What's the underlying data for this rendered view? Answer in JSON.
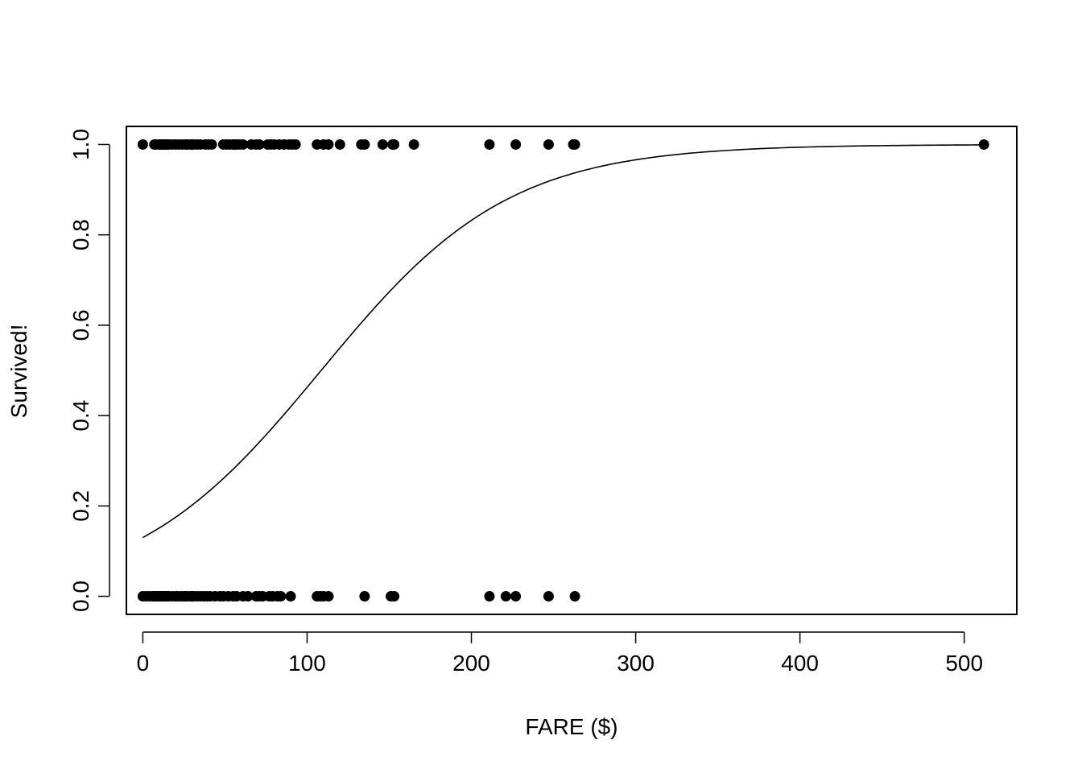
{
  "chart_data": {
    "type": "scatter",
    "title": "",
    "xlabel": "FARE ($)",
    "ylabel": "Survived!",
    "xlim": [
      -10,
      532
    ],
    "ylim": [
      -0.04,
      1.04
    ],
    "xticks": [
      0,
      100,
      200,
      300,
      400,
      500
    ],
    "yticks": [
      0.0,
      0.2,
      0.4,
      0.6,
      0.8,
      1.0
    ],
    "ytick_labels": [
      "0.0",
      "0.2",
      "0.4",
      "0.6",
      "0.8",
      "1.0"
    ],
    "grid": false,
    "legend": "none",
    "point_color": "#000000",
    "series": [
      {
        "values_x": [
          0,
          7,
          8,
          10,
          11,
          12,
          13,
          14,
          15,
          16,
          18,
          20,
          22,
          24,
          26,
          27,
          29,
          30,
          31,
          33,
          35,
          38,
          40,
          42,
          49,
          51,
          53,
          55,
          56,
          57,
          59,
          61,
          66,
          69,
          71,
          76,
          78,
          80,
          83,
          86,
          89,
          91,
          93,
          106,
          110,
          113,
          120,
          133,
          135,
          146,
          152,
          153,
          165,
          211,
          227,
          247,
          262,
          263,
          512
        ],
        "values_y": [
          1,
          1,
          1,
          1,
          1,
          1,
          1,
          1,
          1,
          1,
          1,
          1,
          1,
          1,
          1,
          1,
          1,
          1,
          1,
          1,
          1,
          1,
          1,
          1,
          1,
          1,
          1,
          1,
          1,
          1,
          1,
          1,
          1,
          1,
          1,
          1,
          1,
          1,
          1,
          1,
          1,
          1,
          1,
          1,
          1,
          1,
          1,
          1,
          1,
          1,
          1,
          1,
          1,
          1,
          1,
          1,
          1,
          1,
          1
        ]
      },
      {
        "values_x": [
          0,
          2,
          4,
          6,
          7,
          8,
          9,
          10,
          11,
          12,
          13,
          14,
          15,
          16,
          18,
          20,
          21,
          23,
          25,
          26,
          27,
          29,
          30,
          31,
          33,
          35,
          37,
          39,
          41,
          44,
          47,
          49,
          52,
          55,
          57,
          61,
          64,
          69,
          71,
          73,
          77,
          79,
          82,
          84,
          90,
          106,
          108,
          110,
          113,
          135,
          151,
          153,
          211,
          221,
          227,
          247,
          263
        ],
        "values_y": [
          0,
          0,
          0,
          0,
          0,
          0,
          0,
          0,
          0,
          0,
          0,
          0,
          0,
          0,
          0,
          0,
          0,
          0,
          0,
          0,
          0,
          0,
          0,
          0,
          0,
          0,
          0,
          0,
          0,
          0,
          0,
          0,
          0,
          0,
          0,
          0,
          0,
          0,
          0,
          0,
          0,
          0,
          0,
          0,
          0,
          0,
          0,
          0,
          0,
          0,
          0,
          0,
          0,
          0,
          0,
          0,
          0
        ]
      }
    ],
    "fit_curve": {
      "type": "logistic",
      "intercept": -1.9,
      "slope": 0.0175,
      "x_range": [
        0,
        512
      ]
    }
  }
}
